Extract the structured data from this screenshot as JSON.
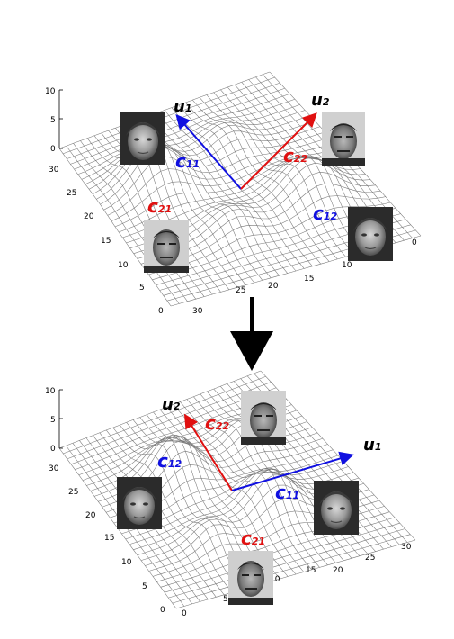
{
  "colors": {
    "c11": "#1010e0",
    "c12": "#1010e0",
    "c21": "#e01010",
    "c22": "#e01010",
    "u": "#000000",
    "mesh": "#777777",
    "arrow": "#000000"
  },
  "top_panel": {
    "u1": {
      "main": "u",
      "sub": "1"
    },
    "u2": {
      "main": "u",
      "sub": "2"
    },
    "c11": {
      "main": "c",
      "sub": "11"
    },
    "c12": {
      "main": "c",
      "sub": "12"
    },
    "c21": {
      "main": "c",
      "sub": "21"
    },
    "c22": {
      "main": "c",
      "sub": "22"
    },
    "z_ticks": [
      "10",
      "5",
      "0"
    ],
    "left_axis_ticks": [
      "30",
      "25",
      "20",
      "15",
      "10",
      "5",
      "0"
    ],
    "front_axis_ticks": [
      "30",
      "25",
      "20",
      "15",
      "10",
      "5",
      "0"
    ]
  },
  "bottom_panel": {
    "u1": {
      "main": "u",
      "sub": "1"
    },
    "u2": {
      "main": "u",
      "sub": "2"
    },
    "c11": {
      "main": "c",
      "sub": "11"
    },
    "c12": {
      "main": "c",
      "sub": "12"
    },
    "c21": {
      "main": "c",
      "sub": "21"
    },
    "c22": {
      "main": "c",
      "sub": "22"
    },
    "z_ticks": [
      "10",
      "5",
      "0"
    ],
    "left_axis_ticks": [
      "30",
      "25",
      "20",
      "15",
      "10",
      "5",
      "0"
    ],
    "front_axis_ticks": [
      "0",
      "5",
      "10",
      "15",
      "20",
      "25",
      "30"
    ]
  },
  "faces": {
    "woman": "woman-face-photo",
    "man": "man-face-photo"
  }
}
